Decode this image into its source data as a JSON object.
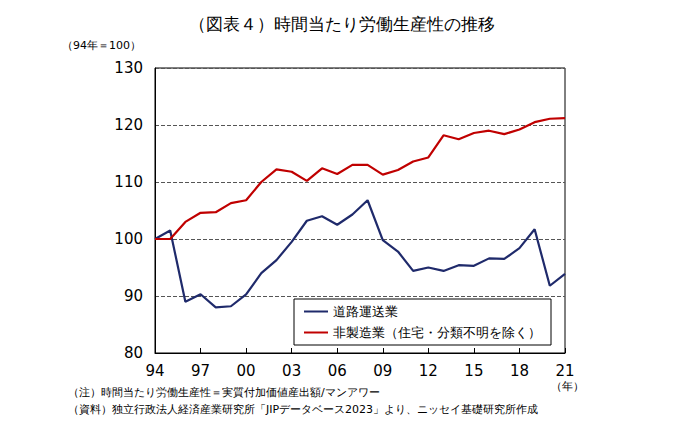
{
  "chart_data": {
    "type": "line",
    "title": "（図表４）時間当たり労働生産性の推移",
    "y_label": "（94年＝100）",
    "x_label": "（年）",
    "notes": [
      "（注）時間当たり労働生産性＝実質付加価値産出額/マンアワー",
      "（資料）独立行政法人経済産業研究所「JIPデータベース2023」より、ニッセイ基礎研究所作成"
    ],
    "categories": [
      "94",
      null,
      null,
      "97",
      null,
      null,
      "00",
      null,
      null,
      "03",
      null,
      null,
      "06",
      null,
      null,
      "09",
      null,
      null,
      "12",
      null,
      null,
      "15",
      null,
      null,
      "18",
      null,
      null,
      "21"
    ],
    "series": [
      {
        "name": "道路運送業",
        "color": "#1f2a6b",
        "values": [
          100,
          101.5,
          89,
          90.3,
          88,
          88.2,
          90.3,
          94,
          96.3,
          99.5,
          103.2,
          104,
          102.5,
          104.3,
          106.8,
          99.8,
          97.8,
          94.4,
          95,
          94.4,
          95.4,
          95.3,
          96.6,
          96.5,
          98.4,
          101.7,
          91.8,
          93.9
        ]
      },
      {
        "name": "非製造業（住宅・分類不明を除く）",
        "color": "#c00000",
        "values": [
          100,
          100,
          103,
          104.6,
          104.7,
          106.3,
          106.8,
          110,
          112.2,
          111.8,
          110.2,
          112.4,
          111.4,
          113,
          113,
          111.3,
          112.1,
          113.6,
          114.3,
          118.2,
          117.5,
          118.6,
          119,
          118.4,
          119.2,
          120.5,
          121.1,
          121.2
        ]
      }
    ],
    "ylim": [
      80,
      130
    ],
    "yticks": [
      80,
      90,
      100,
      110,
      120,
      130
    ],
    "grid": true,
    "legend": "lower right"
  }
}
